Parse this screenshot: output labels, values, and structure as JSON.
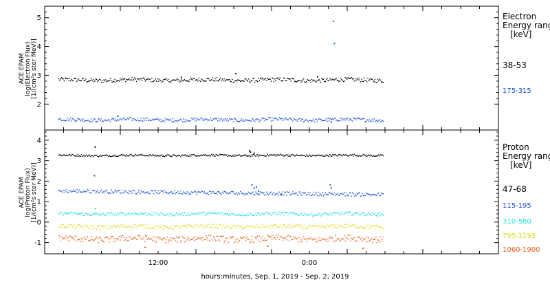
{
  "chart_data": [
    {
      "type": "scatter",
      "panel": "electron",
      "ylabel_lines": [
        "ACE EPAM",
        "log(Electron Flux)",
        "[1/(cm²s ster MeV)]"
      ],
      "ylim": [
        1.1,
        5.4
      ],
      "yticks": [
        2,
        3,
        4,
        5
      ],
      "legend_title": [
        "Electron",
        "Energy range",
        "[keV]"
      ],
      "series": [
        {
          "name": "38-53",
          "color": "#000000",
          "base": 2.85,
          "spread": 0.07,
          "x_end": 0.745,
          "spikes": [
            [
              0.42,
              3.08
            ],
            [
              0.3,
              2.95
            ],
            [
              0.6,
              2.97
            ]
          ]
        },
        {
          "name": "175-315",
          "color": "#1a4fd6",
          "base": 1.47,
          "spread": 0.06,
          "x_end": 0.745,
          "spikes": [
            [
              0.635,
              4.9
            ],
            [
              0.637,
              4.13
            ],
            [
              0.63,
              1.4
            ],
            [
              0.16,
              1.6
            ]
          ]
        }
      ]
    },
    {
      "type": "scatter",
      "panel": "proton",
      "ylabel_lines": [
        "ACE EPAM",
        "log(Proton Flux)",
        "[1/(cm²s ster MeV)]"
      ],
      "ylim": [
        -1.55,
        4.5
      ],
      "yticks": [
        -1,
        0,
        1,
        2,
        3,
        4
      ],
      "legend_title": [
        "Proton",
        "Energy range",
        "[keV]"
      ],
      "series": [
        {
          "name": "47-68",
          "color": "#000000",
          "base": 3.28,
          "spread": 0.05,
          "x_end": 0.745,
          "spikes": [
            [
              0.11,
              3.7
            ],
            [
              0.45,
              3.52
            ],
            [
              0.452,
              3.45
            ],
            [
              0.46,
              3.4
            ]
          ]
        },
        {
          "name": "115-195",
          "color": "#1a4fd6",
          "base": 1.4,
          "spread": 0.09,
          "x_end": 0.745,
          "spikes": [
            [
              0.108,
              2.3
            ],
            [
              0.455,
              1.85
            ],
            [
              0.46,
              1.7
            ],
            [
              0.465,
              1.75
            ],
            [
              0.47,
              1.55
            ],
            [
              0.52,
              1.4
            ],
            [
              0.628,
              1.85
            ],
            [
              0.63,
              1.7
            ]
          ]
        },
        {
          "name": "310-580",
          "color": "#22dede",
          "base": 0.42,
          "spread": 0.08,
          "x_end": 0.745,
          "spikes": [
            [
              0.11,
              0.7
            ]
          ]
        },
        {
          "name": "795-1193",
          "color": "#dddd22",
          "base": -0.2,
          "spread": 0.1,
          "x_end": 0.745,
          "spikes": []
        },
        {
          "name": "1060-1900",
          "color": "#e85a12",
          "base": -0.8,
          "spread": 0.15,
          "x_end": 0.745,
          "spikes": [
            [
              0.22,
              -1.2
            ],
            [
              0.49,
              -1.15
            ],
            [
              0.7,
              -1.25
            ]
          ]
        }
      ]
    }
  ],
  "xaxis": {
    "tick_labels": [
      {
        "label": "12:00",
        "pos": 0.25
      },
      {
        "label": "0:00",
        "pos": 0.583
      }
    ],
    "xlabel": "hours:minutes, Sep.  1, 2019 - Sep.  2, 2019"
  }
}
